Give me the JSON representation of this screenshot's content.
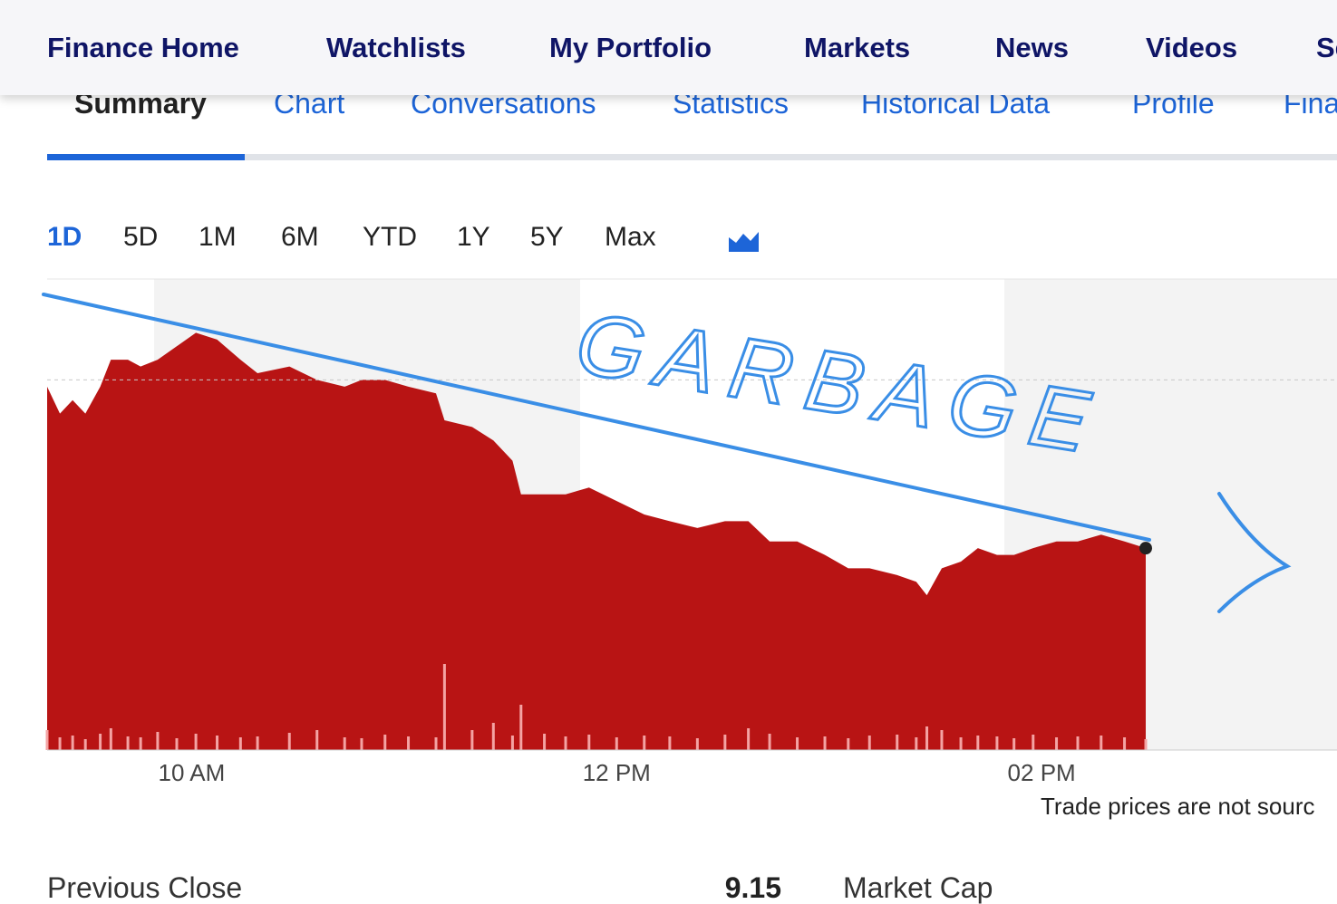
{
  "nav": [
    "Finance Home",
    "Watchlists",
    "My Portfolio",
    "Markets",
    "News",
    "Videos",
    "Se"
  ],
  "tabs": [
    "Summary",
    "Chart",
    "Conversations",
    "Statistics",
    "Historical Data",
    "Profile",
    "Fina"
  ],
  "ranges": [
    "1D",
    "5D",
    "1M",
    "6M",
    "YTD",
    "1Y",
    "5Y",
    "Max"
  ],
  "chart_data": {
    "type": "area",
    "annotation": "GARBAGE",
    "color": "#b81414",
    "x": [
      9.32,
      9.38,
      9.44,
      9.5,
      9.57,
      9.62,
      9.7,
      9.76,
      9.84,
      9.93,
      10.02,
      10.12,
      10.23,
      10.31,
      10.46,
      10.59,
      10.72,
      10.8,
      10.91,
      11.02,
      11.15,
      11.19,
      11.32,
      11.42,
      11.51,
      11.55,
      11.66,
      11.76,
      11.87,
      12.0,
      12.13,
      12.25,
      12.38,
      12.51,
      12.62,
      12.72,
      12.85,
      12.98,
      13.09,
      13.19,
      13.32,
      13.41,
      13.46,
      13.53,
      13.62,
      13.7,
      13.79,
      13.87,
      13.96,
      14.07,
      14.17,
      14.28,
      14.39,
      14.49
    ],
    "values": [
      9.14,
      9.1,
      9.12,
      9.1,
      9.14,
      9.18,
      9.18,
      9.17,
      9.18,
      9.2,
      9.22,
      9.21,
      9.18,
      9.16,
      9.17,
      9.15,
      9.14,
      9.15,
      9.15,
      9.14,
      9.13,
      9.09,
      9.08,
      9.06,
      9.03,
      8.98,
      8.98,
      8.98,
      8.99,
      8.97,
      8.95,
      8.94,
      8.93,
      8.94,
      8.94,
      8.91,
      8.91,
      8.89,
      8.87,
      8.87,
      8.86,
      8.85,
      8.83,
      8.87,
      8.88,
      8.9,
      8.89,
      8.89,
      8.9,
      8.91,
      8.91,
      8.92,
      8.91,
      8.9
    ],
    "volume": [
      22,
      14,
      16,
      12,
      18,
      24,
      15,
      14,
      20,
      13,
      18,
      16,
      14,
      15,
      19,
      22,
      14,
      13,
      17,
      15,
      14,
      95,
      22,
      30,
      16,
      50,
      18,
      15,
      17,
      14,
      16,
      15,
      13,
      17,
      24,
      18,
      14,
      15,
      13,
      16,
      17,
      14,
      26,
      22,
      14,
      16,
      15,
      13,
      17,
      14,
      15,
      16,
      14,
      12
    ],
    "volume_color": "#f4a3a3",
    "xlim": [
      9.32,
      15.39
    ],
    "xticks": [
      {
        "value": 10,
        "label": "10 AM"
      },
      {
        "value": 12,
        "label": "12 PM"
      },
      {
        "value": 14,
        "label": "02 PM"
      }
    ],
    "ylim": [
      8.6,
      9.3
    ],
    "volume_lim": [
      0,
      100
    ]
  },
  "footnote": "Trade prices are not sourc",
  "stats": {
    "label": "Previous Close",
    "value": 9.15,
    "next_label": "Market Cap"
  }
}
